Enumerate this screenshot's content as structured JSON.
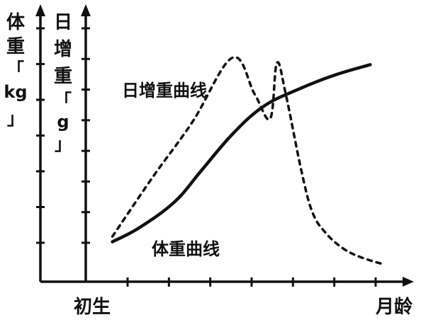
{
  "chart_data": {
    "type": "line",
    "x_axis": {
      "label": "月龄",
      "tick_labels": [
        "初生"
      ],
      "tick_count": 7
    },
    "y_axes": [
      {
        "label_chars": [
          "体",
          "重",
          "「",
          "kg",
          "」"
        ],
        "tick_count": 7
      },
      {
        "label_chars": [
          "日",
          "增",
          "重",
          "「",
          "g",
          "」"
        ],
        "tick_count": 8
      }
    ],
    "series": [
      {
        "name": "体重曲线",
        "style": "solid",
        "color": "#111111",
        "x": [
          0.6,
          1.2,
          2.0,
          2.6,
          3.3,
          4.0,
          4.8,
          5.6,
          6.4
        ],
        "y": [
          1.15,
          1.55,
          2.3,
          3.2,
          4.25,
          5.05,
          5.55,
          5.95,
          6.25
        ]
      },
      {
        "name": "日增重曲线",
        "style": "dashed",
        "color": "#111111",
        "x": [
          0.6,
          1.5,
          2.4,
          3.3,
          3.8,
          4.15,
          4.3,
          4.5,
          4.85,
          5.1,
          5.4,
          5.8,
          6.2,
          6.7
        ],
        "y": [
          1.3,
          3.0,
          4.6,
          6.45,
          5.4,
          4.7,
          6.3,
          5.4,
          3.2,
          2.0,
          1.4,
          0.95,
          0.7,
          0.5
        ]
      }
    ],
    "annotations": [
      {
        "text": "日增重曲线",
        "for_series": "日增重曲线"
      },
      {
        "text": "体重曲线",
        "for_series": "体重曲线"
      }
    ],
    "xlim": [
      0,
      7
    ],
    "ylim": [
      0,
      7.5
    ],
    "grid": false
  }
}
